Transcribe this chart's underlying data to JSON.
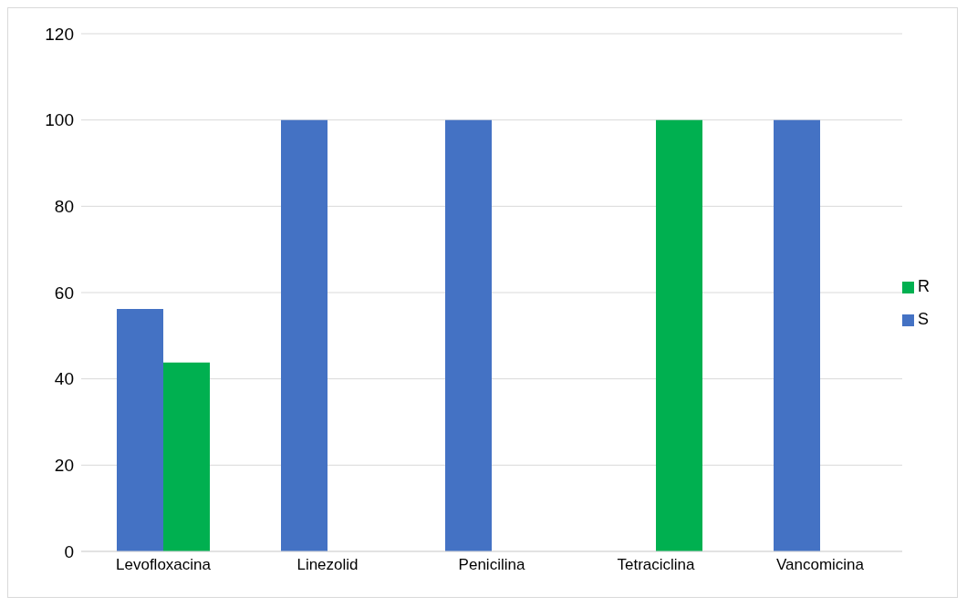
{
  "chart_data": {
    "type": "bar",
    "categories": [
      "Levofloxacina",
      "Linezolid",
      "Penicilina",
      "Tetraciclina",
      "Vancomicina"
    ],
    "series": [
      {
        "name": "S",
        "color": "#4472c4",
        "values": [
          56.2,
          100,
          100,
          0,
          100
        ]
      },
      {
        "name": "R",
        "color": "#00b050",
        "values": [
          43.8,
          0,
          0,
          100,
          0
        ]
      }
    ],
    "ylim": [
      0,
      120
    ],
    "yticks": [
      0,
      20,
      40,
      60,
      80,
      100,
      120
    ],
    "grid": "y",
    "legend": "right"
  }
}
